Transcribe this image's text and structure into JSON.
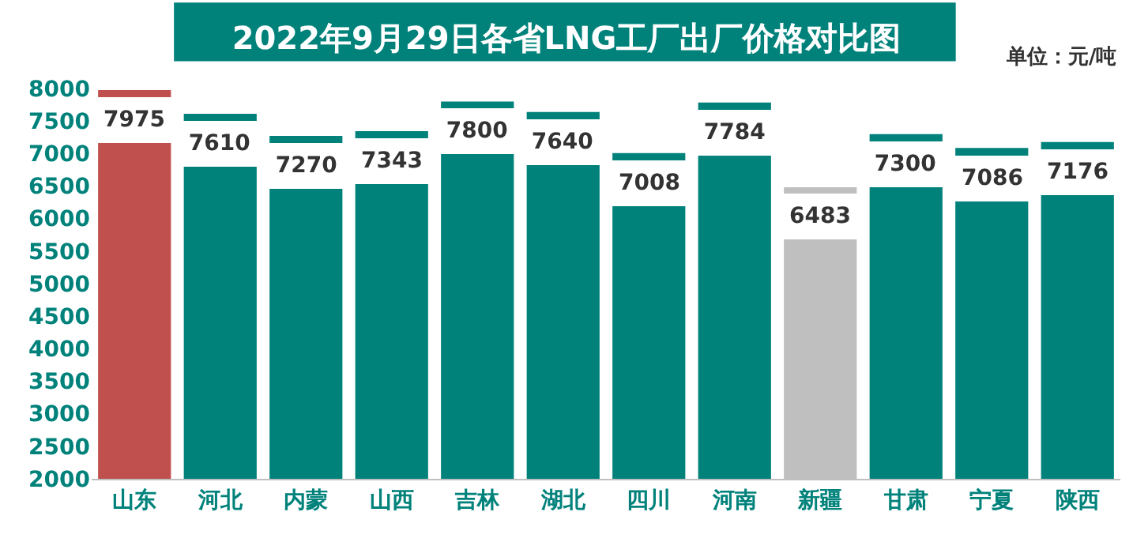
{
  "chart_data": {
    "type": "bar",
    "title": "2022年9月29日各省LNG工厂出厂价格对比图",
    "categories": [
      "山东",
      "河北",
      "内蒙",
      "山西",
      "吉林",
      "湖北",
      "四川",
      "河南",
      "新疆",
      "甘肃",
      "宁夏",
      "陕西"
    ],
    "values": [
      7975,
      7610,
      7270,
      7343,
      7800,
      7640,
      7008,
      7784,
      6483,
      7300,
      7086,
      7176
    ],
    "colors": [
      "#c0504d",
      "#00827b",
      "#00827b",
      "#00827b",
      "#00827b",
      "#00827b",
      "#00827b",
      "#00827b",
      "#bfbfbf",
      "#00827b",
      "#00827b",
      "#00827b"
    ],
    "ylim": [
      2000,
      8000
    ],
    "yticks": [
      2000,
      2500,
      3000,
      3500,
      4000,
      4500,
      5000,
      5500,
      6000,
      6500,
      7000,
      7500,
      8000
    ],
    "grid": false,
    "legend": false,
    "data_labels": true,
    "annotations": [
      "单位：元/吨"
    ]
  }
}
